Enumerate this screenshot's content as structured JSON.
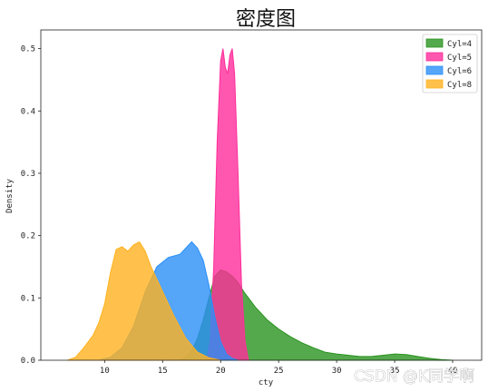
{
  "chart_data": {
    "type": "area",
    "title": "密度图",
    "xlabel": "cty",
    "ylabel": "Density",
    "xlim": [
      4.5,
      42.5
    ],
    "ylim": [
      0,
      0.53
    ],
    "xticks": [
      10,
      15,
      20,
      25,
      30,
      35,
      40
    ],
    "xtick_labels": [
      "10",
      "15",
      "20",
      "25",
      "30",
      "35",
      "40"
    ],
    "yticks": [
      0,
      0.1,
      0.2,
      0.3,
      0.4,
      0.5
    ],
    "ytick_labels": [
      "0.0",
      "0.1",
      "0.2",
      "0.3",
      "0.4",
      "0.5"
    ],
    "grid": false,
    "legend_position": "top-right",
    "series": [
      {
        "name": "Cyl=4",
        "color": "#2a9420",
        "points": [
          [
            16.5,
            0
          ],
          [
            17,
            0.005
          ],
          [
            17.5,
            0.015
          ],
          [
            18,
            0.035
          ],
          [
            18.5,
            0.065
          ],
          [
            19,
            0.1
          ],
          [
            19.5,
            0.135
          ],
          [
            20,
            0.145
          ],
          [
            20.5,
            0.142
          ],
          [
            21,
            0.135
          ],
          [
            21.5,
            0.125
          ],
          [
            22,
            0.11
          ],
          [
            23,
            0.085
          ],
          [
            24,
            0.065
          ],
          [
            25,
            0.05
          ],
          [
            26,
            0.038
          ],
          [
            27,
            0.028
          ],
          [
            28,
            0.02
          ],
          [
            29,
            0.013
          ],
          [
            30,
            0.01
          ],
          [
            31,
            0.008
          ],
          [
            32,
            0.006
          ],
          [
            33,
            0.006
          ],
          [
            34,
            0.008
          ],
          [
            35,
            0.01
          ],
          [
            36,
            0.009
          ],
          [
            37,
            0.006
          ],
          [
            38,
            0.003
          ],
          [
            39,
            0.001
          ],
          [
            40,
            0
          ]
        ]
      },
      {
        "name": "Cyl=5",
        "color": "#ff2d9b",
        "points": [
          [
            18.8,
            0
          ],
          [
            19.1,
            0.03
          ],
          [
            19.4,
            0.15
          ],
          [
            19.7,
            0.35
          ],
          [
            20,
            0.48
          ],
          [
            20.2,
            0.5
          ],
          [
            20.4,
            0.47
          ],
          [
            20.6,
            0.46
          ],
          [
            20.8,
            0.49
          ],
          [
            21,
            0.5
          ],
          [
            21.2,
            0.46
          ],
          [
            21.5,
            0.3
          ],
          [
            21.8,
            0.12
          ],
          [
            22.1,
            0.03
          ],
          [
            22.4,
            0
          ],
          [
            20.8,
            0
          ]
        ]
      },
      {
        "name": "Cyl=6",
        "color": "#2a8ff7",
        "points": [
          [
            9.5,
            0
          ],
          [
            10.5,
            0.005
          ],
          [
            11.5,
            0.02
          ],
          [
            12.5,
            0.055
          ],
          [
            13.5,
            0.11
          ],
          [
            14.5,
            0.15
          ],
          [
            15.5,
            0.165
          ],
          [
            16.5,
            0.17
          ],
          [
            17,
            0.18
          ],
          [
            17.5,
            0.19
          ],
          [
            18,
            0.18
          ],
          [
            18.5,
            0.16
          ],
          [
            19,
            0.12
          ],
          [
            19.5,
            0.07
          ],
          [
            20,
            0.03
          ],
          [
            20.5,
            0.01
          ],
          [
            21,
            0.003
          ],
          [
            21.5,
            0
          ]
        ]
      },
      {
        "name": "Cyl=8",
        "color": "#ffb21f",
        "points": [
          [
            6.8,
            0
          ],
          [
            7.5,
            0.005
          ],
          [
            8.2,
            0.02
          ],
          [
            9,
            0.04
          ],
          [
            9.5,
            0.06
          ],
          [
            10,
            0.09
          ],
          [
            10.5,
            0.14
          ],
          [
            11,
            0.178
          ],
          [
            11.5,
            0.182
          ],
          [
            12,
            0.175
          ],
          [
            12.5,
            0.185
          ],
          [
            13,
            0.19
          ],
          [
            13.5,
            0.175
          ],
          [
            14,
            0.15
          ],
          [
            15,
            0.11
          ],
          [
            16,
            0.07
          ],
          [
            17,
            0.035
          ],
          [
            18,
            0.013
          ],
          [
            19,
            0.004
          ],
          [
            20,
            0
          ]
        ]
      }
    ]
  },
  "watermark": "CSDN @K同学啊"
}
